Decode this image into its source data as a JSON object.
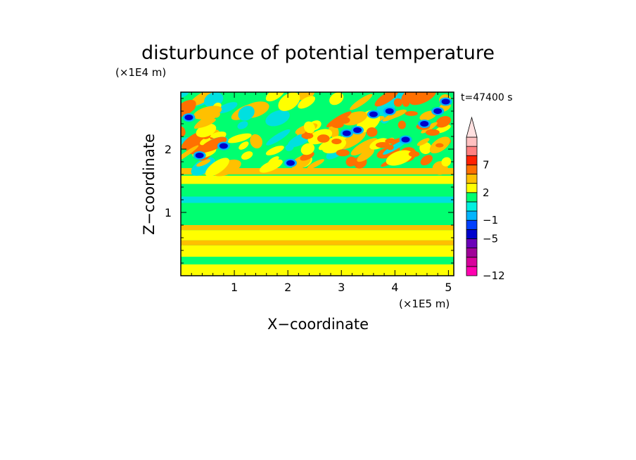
{
  "chart_data": {
    "type": "heatmap",
    "title": "disturbunce of potential temperature",
    "time_label": "t=47400 s",
    "xlabel": "X−coordinate",
    "ylabel": "Z−coordinate",
    "x_unit": "(×1E5 m)",
    "y_unit": "(×1E4 m)",
    "xlim": [
      0,
      5.1
    ],
    "ylim": [
      0,
      2.9
    ],
    "x_ticks": [
      {
        "value": 1,
        "label": "1"
      },
      {
        "value": 2,
        "label": "2"
      },
      {
        "value": 3,
        "label": "3"
      },
      {
        "value": 4,
        "label": "4"
      },
      {
        "value": 5,
        "label": "5"
      }
    ],
    "y_ticks": [
      {
        "value": 1,
        "label": "1"
      },
      {
        "value": 2,
        "label": "2"
      }
    ],
    "colorbar": {
      "extend": "max",
      "levels": [
        -12,
        -10,
        -8,
        -6,
        -5,
        -3,
        -1,
        0,
        1,
        2,
        3,
        5,
        7,
        9,
        11
      ],
      "colors": [
        "#ff00b0",
        "#d8009c",
        "#a00098",
        "#6a00b8",
        "#0000cc",
        "#0040ff",
        "#00b4ff",
        "#00f0e0",
        "#00ff70",
        "#ffff00",
        "#ffc000",
        "#ff7000",
        "#ff2000",
        "#ff8080",
        "#ffc0c0",
        "#ffe0e0"
      ],
      "tick_labels": [
        {
          "value": -12,
          "label": "−12"
        },
        {
          "value": -5,
          "label": "−5"
        },
        {
          "value": -1,
          "label": "−1"
        },
        {
          "value": 2,
          "label": "2"
        },
        {
          "value": 7,
          "label": "7"
        }
      ]
    }
  }
}
